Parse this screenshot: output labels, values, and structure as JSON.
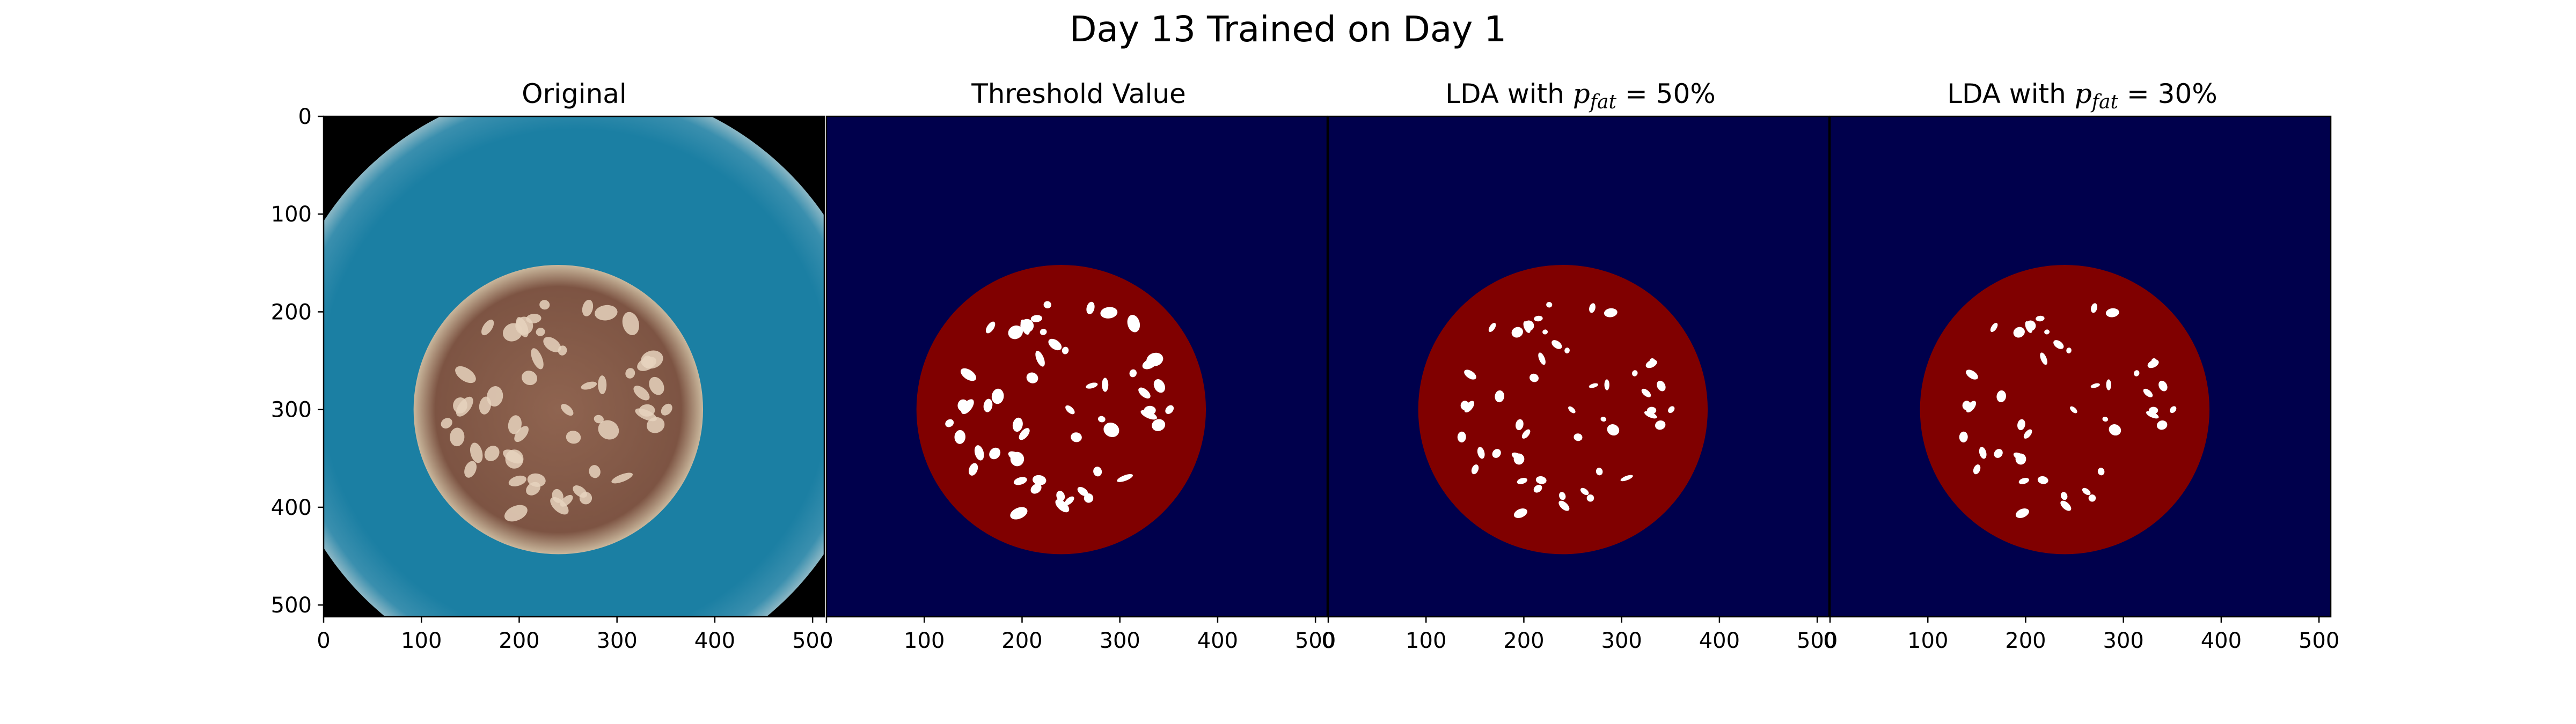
{
  "figure": {
    "suptitle": "Day 13 Trained on Day 1"
  },
  "panels": [
    {
      "id": "original",
      "title": "Original",
      "kind": "photo"
    },
    {
      "id": "threshold",
      "title": "Threshold Value",
      "kind": "mask"
    },
    {
      "id": "lda50",
      "title_prefix": "LDA with ",
      "title_var": "p",
      "title_sub": "fat",
      "title_suffix": " = 50%",
      "kind": "mask"
    },
    {
      "id": "lda30",
      "title_prefix": "LDA with ",
      "title_var": "p",
      "title_sub": "fat",
      "title_suffix": " = 30%",
      "kind": "mask"
    }
  ],
  "axes": {
    "x_ticks": [
      0,
      100,
      200,
      300,
      400,
      500
    ],
    "y_ticks": [
      0,
      100,
      200,
      300,
      400,
      500
    ],
    "range": [
      0,
      512
    ]
  },
  "colors": {
    "mask_background": "#00004c",
    "mask_lean": "#800000",
    "mask_fat": "#ffffff",
    "plate_blue": "#1b7fa3",
    "photo_black": "#000000",
    "sausage_brown": "#8a5a45"
  }
}
